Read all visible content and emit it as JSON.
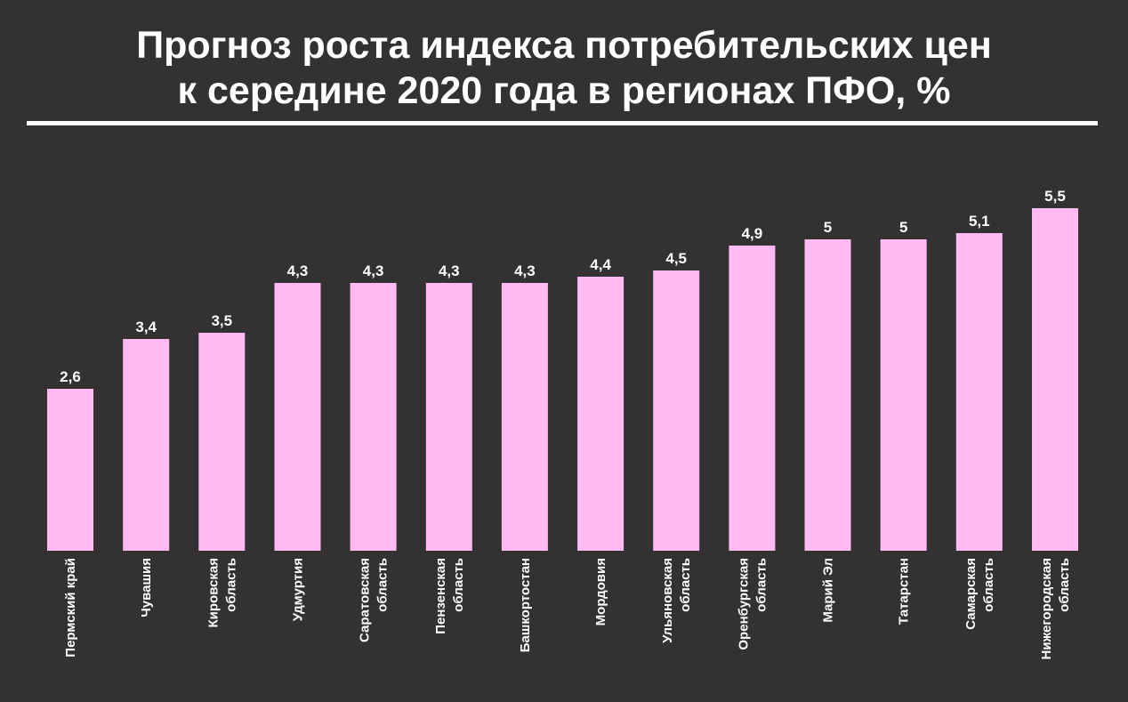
{
  "title_line1": "Прогноз роста индекса потребительских цен",
  "title_line2": "к середине 2020 года в регионах ПФО, %",
  "colors": {
    "background": "#333132",
    "bar": "#ffbbf2",
    "text": "#ffffff"
  },
  "chart_data": {
    "type": "bar",
    "title": "Прогноз роста индекса потребительских цен к середине 2020 года в регионах ПФО, %",
    "categories": [
      [
        "Пермский край"
      ],
      [
        "Чувашия"
      ],
      [
        "Кировская",
        "область"
      ],
      [
        "Удмуртия"
      ],
      [
        "Саратовская",
        "область"
      ],
      [
        "Пензенская",
        "область"
      ],
      [
        "Башкортостан"
      ],
      [
        "Мордовия"
      ],
      [
        "Ульяновская",
        "область"
      ],
      [
        "Оренбургская",
        "область"
      ],
      [
        "Марий Эл"
      ],
      [
        "Татарстан"
      ],
      [
        "Самарская",
        "область"
      ],
      [
        "Нижегородская",
        "область"
      ]
    ],
    "values": [
      2.6,
      3.4,
      3.5,
      4.3,
      4.3,
      4.3,
      4.3,
      4.4,
      4.5,
      4.9,
      5,
      5,
      5.1,
      5.5
    ],
    "value_labels": [
      "2,6",
      "3,4",
      "3,5",
      "4,3",
      "4,3",
      "4,3",
      "4,3",
      "4,4",
      "4,5",
      "4,9",
      "5",
      "5",
      "5,1",
      "5,5"
    ],
    "ylim": [
      0,
      5.5
    ],
    "grid": false,
    "legend": "none"
  }
}
